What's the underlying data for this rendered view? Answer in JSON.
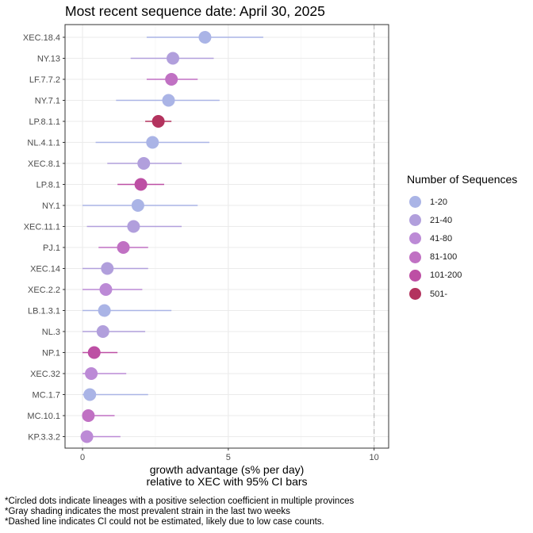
{
  "chart_data": {
    "type": "scatter",
    "title": "Most recent sequence date: April 30, 2025",
    "xlabel_lines": [
      "growth advantage (s% per day)",
      "relative to  XEC  with 95% CI bars"
    ],
    "ylabel": "",
    "xlim": [
      -0.6,
      10.5
    ],
    "xticks": [
      0,
      5,
      10
    ],
    "reference_line": 10,
    "grid": true,
    "legend": {
      "title": "Number of Sequences",
      "position": "right",
      "entries": [
        {
          "label": "1-20",
          "color": "#aab4e6"
        },
        {
          "label": "21-40",
          "color": "#b19fdc"
        },
        {
          "label": "41-80",
          "color": "#bc8ad6"
        },
        {
          "label": "81-100",
          "color": "#c071c3"
        },
        {
          "label": "101-200",
          "color": "#bd4fa4"
        },
        {
          "label": "501-",
          "color": "#b3335e"
        }
      ]
    },
    "points": [
      {
        "lineage": "XEC.18.4",
        "value": 4.2,
        "ci": [
          2.2,
          6.2
        ],
        "group": "1-20"
      },
      {
        "lineage": "NY.13",
        "value": 3.1,
        "ci": [
          1.65,
          4.5
        ],
        "group": "21-40"
      },
      {
        "lineage": "LF.7.7.2",
        "value": 3.05,
        "ci": [
          2.2,
          3.95
        ],
        "group": "81-100"
      },
      {
        "lineage": "NY.7.1",
        "value": 2.95,
        "ci": [
          1.15,
          4.7
        ],
        "group": "1-20"
      },
      {
        "lineage": "LP.8.1.1",
        "value": 2.6,
        "ci": [
          2.15,
          3.05
        ],
        "group": "501-"
      },
      {
        "lineage": "NL.4.1.1",
        "value": 2.4,
        "ci": [
          0.45,
          4.35
        ],
        "group": "1-20"
      },
      {
        "lineage": "XEC.8.1",
        "value": 2.1,
        "ci": [
          0.85,
          3.4
        ],
        "group": "21-40"
      },
      {
        "lineage": "LP.8.1",
        "value": 2.0,
        "ci": [
          1.2,
          2.8
        ],
        "group": "101-200"
      },
      {
        "lineage": "NY.1",
        "value": 1.9,
        "ci": [
          0.0,
          3.95
        ],
        "group": "1-20"
      },
      {
        "lineage": "XEC.11.1",
        "value": 1.75,
        "ci": [
          0.15,
          3.4
        ],
        "group": "21-40"
      },
      {
        "lineage": "PJ.1",
        "value": 1.4,
        "ci": [
          0.55,
          2.25
        ],
        "group": "81-100"
      },
      {
        "lineage": "XEC.14",
        "value": 0.85,
        "ci": [
          0.0,
          2.25
        ],
        "group": "21-40"
      },
      {
        "lineage": "XEC.2.2",
        "value": 0.8,
        "ci": [
          0.0,
          2.05
        ],
        "group": "41-80"
      },
      {
        "lineage": "LB.1.3.1",
        "value": 0.75,
        "ci": [
          0.0,
          3.05
        ],
        "group": "1-20"
      },
      {
        "lineage": "NL.3",
        "value": 0.7,
        "ci": [
          0.0,
          2.15
        ],
        "group": "21-40"
      },
      {
        "lineage": "NP.1",
        "value": 0.4,
        "ci": [
          0.0,
          1.2
        ],
        "group": "101-200"
      },
      {
        "lineage": "XEC.32",
        "value": 0.3,
        "ci": [
          0.0,
          1.5
        ],
        "group": "41-80"
      },
      {
        "lineage": "MC.1.7",
        "value": 0.25,
        "ci": [
          0.0,
          2.25
        ],
        "group": "1-20"
      },
      {
        "lineage": "MC.10.1",
        "value": 0.2,
        "ci": [
          0.0,
          1.1
        ],
        "group": "81-100"
      },
      {
        "lineage": "KP.3.3.2",
        "value": 0.15,
        "ci": [
          0.0,
          1.3
        ],
        "group": "41-80"
      }
    ]
  },
  "footnotes": [
    "*Circled dots indicate lineages with a positive selection coefficient in multiple provinces",
    "*Gray shading indicates the most prevalent strain in the last two weeks",
    "*Dashed line indicates CI could not be estimated, likely due to low case counts."
  ]
}
